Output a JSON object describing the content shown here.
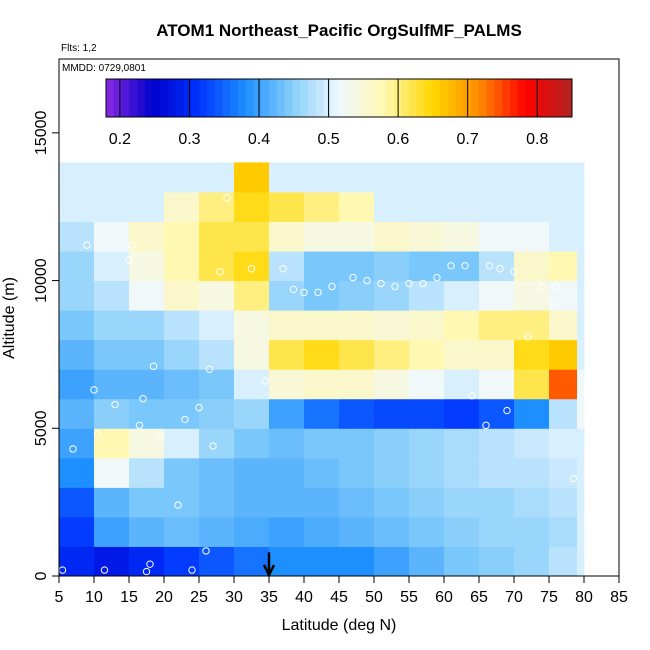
{
  "chart_data": {
    "type": "heatmap",
    "title": "ATOM1 Northeast_Pacific OrgSulfMF_PALMS",
    "flights_label": "Flts: 1,2",
    "dates_label": "MMDD: 0729,0801",
    "xlabel": "Latitude (deg N)",
    "ylabel": "Altitude (m)",
    "xlim": [
      5,
      85
    ],
    "ylim": [
      0,
      17500
    ],
    "x_ticks": [
      5,
      10,
      15,
      20,
      25,
      30,
      35,
      40,
      45,
      50,
      55,
      60,
      65,
      70,
      75,
      80,
      85
    ],
    "y_ticks": [
      0,
      5000,
      10000,
      15000
    ],
    "colorbar": {
      "range": [
        0.18,
        0.85
      ],
      "ticks": [
        "0.2",
        "0.3",
        "0.4",
        "0.5",
        "0.6",
        "0.7",
        "0.8"
      ],
      "tick_values": [
        0.2,
        0.3,
        0.4,
        0.5,
        0.6,
        0.7,
        0.8
      ],
      "colors": [
        "#8a2be2",
        "#0000cd",
        "#0033ff",
        "#1e90ff",
        "#87cefa",
        "#f0f8ff",
        "#fff8b0",
        "#ffd700",
        "#ff8c00",
        "#ff0000",
        "#b22222"
      ]
    },
    "grid": false,
    "colorbar_position": "top",
    "marker": {
      "latitude": 35,
      "label_arrow": "down"
    },
    "lat_bins": [
      5,
      10,
      15,
      20,
      25,
      30,
      35,
      40,
      45,
      50,
      55,
      60,
      65,
      70,
      75,
      79
    ],
    "alt_bins": [
      0,
      1000,
      2000,
      3000,
      4000,
      5000,
      6000,
      7000,
      8000,
      9000,
      10000,
      11000,
      12000,
      13000
    ],
    "values": [
      [
        0.3,
        0.28,
        0.3,
        0.32,
        0.34,
        0.36,
        0.38,
        0.38,
        0.38,
        0.4,
        0.42,
        0.44,
        0.45,
        0.46,
        0.48,
        0.5
      ],
      [
        0.32,
        0.4,
        0.42,
        0.43,
        0.42,
        0.41,
        0.4,
        0.41,
        0.42,
        0.43,
        0.44,
        0.45,
        0.46,
        0.46,
        0.47,
        0.5
      ],
      [
        0.34,
        0.42,
        0.44,
        0.44,
        0.43,
        0.42,
        0.42,
        0.42,
        0.43,
        0.44,
        0.45,
        0.46,
        0.46,
        0.47,
        0.48,
        0.5
      ],
      [
        0.38,
        0.52,
        0.48,
        0.44,
        0.43,
        0.42,
        0.42,
        0.43,
        0.44,
        0.45,
        0.46,
        0.47,
        0.48,
        0.48,
        0.49,
        0.5
      ],
      [
        0.4,
        0.58,
        0.54,
        0.5,
        0.46,
        0.44,
        0.43,
        0.44,
        0.44,
        0.45,
        0.46,
        0.47,
        0.48,
        0.49,
        0.5,
        0.5
      ],
      [
        0.42,
        0.45,
        0.44,
        0.44,
        0.45,
        0.46,
        0.4,
        0.36,
        0.34,
        0.33,
        0.33,
        0.32,
        0.34,
        0.38,
        0.48,
        0.52
      ],
      [
        0.4,
        0.42,
        0.42,
        0.43,
        0.44,
        0.5,
        0.55,
        0.56,
        0.56,
        0.54,
        0.52,
        0.5,
        0.52,
        0.62,
        0.74,
        0.52
      ],
      [
        0.42,
        0.44,
        0.44,
        0.46,
        0.48,
        0.54,
        0.62,
        0.64,
        0.62,
        0.6,
        0.58,
        0.56,
        0.56,
        0.64,
        0.66,
        0.5
      ],
      [
        0.44,
        0.46,
        0.46,
        0.48,
        0.5,
        0.54,
        0.56,
        0.56,
        0.56,
        0.55,
        0.56,
        0.58,
        0.6,
        0.6,
        0.56,
        0.5
      ],
      [
        0.46,
        0.48,
        0.52,
        0.56,
        0.54,
        0.6,
        0.46,
        0.44,
        0.45,
        0.46,
        0.48,
        0.5,
        0.52,
        0.54,
        0.52,
        0.5
      ],
      [
        0.46,
        0.5,
        0.54,
        0.58,
        0.62,
        0.64,
        0.48,
        0.44,
        0.44,
        0.45,
        0.44,
        0.44,
        0.48,
        0.56,
        0.58,
        0.5
      ],
      [
        0.48,
        0.52,
        0.56,
        0.58,
        0.62,
        0.62,
        0.56,
        0.54,
        0.54,
        0.56,
        0.55,
        0.54,
        0.52,
        0.52,
        0.5,
        0.5
      ],
      [
        0.5,
        0.5,
        0.5,
        0.56,
        0.6,
        0.64,
        0.62,
        0.6,
        0.58,
        0.5,
        0.5,
        0.5,
        0.5,
        0.5,
        0.5,
        0.5
      ],
      [
        0.5,
        0.5,
        0.5,
        0.5,
        0.5,
        0.66,
        0.5,
        0.5,
        0.5,
        0.5,
        0.5,
        0.5,
        0.5,
        0.5,
        0.5,
        0.5
      ]
    ],
    "samples": [
      [
        5.5,
        200
      ],
      [
        7,
        4300
      ],
      [
        9,
        11200
      ],
      [
        10,
        6300
      ],
      [
        10.5,
        4800
      ],
      [
        11.5,
        200
      ],
      [
        13,
        5800
      ],
      [
        15,
        10700
      ],
      [
        15.5,
        11200
      ],
      [
        16.5,
        5100
      ],
      [
        17,
        6000
      ],
      [
        17.5,
        150
      ],
      [
        18,
        400
      ],
      [
        18.5,
        7100
      ],
      [
        19.5,
        4700
      ],
      [
        22,
        2400
      ],
      [
        23,
        5300
      ],
      [
        24,
        200
      ],
      [
        25,
        5700
      ],
      [
        26,
        850
      ],
      [
        26.5,
        7000
      ],
      [
        27,
        4400
      ],
      [
        28,
        10300
      ],
      [
        29,
        12800
      ],
      [
        32.5,
        10400
      ],
      [
        34.5,
        6600
      ],
      [
        37,
        10400
      ],
      [
        38.5,
        9700
      ],
      [
        40,
        9600
      ],
      [
        42,
        9600
      ],
      [
        44,
        9800
      ],
      [
        47,
        10100
      ],
      [
        49,
        10000
      ],
      [
        51,
        9900
      ],
      [
        53,
        9800
      ],
      [
        55,
        9900
      ],
      [
        57,
        9900
      ],
      [
        59,
        10100
      ],
      [
        61,
        10500
      ],
      [
        63,
        10500
      ],
      [
        64,
        6100
      ],
      [
        66,
        5100
      ],
      [
        66.5,
        10500
      ],
      [
        68,
        10400
      ],
      [
        69,
        5600
      ],
      [
        70,
        10300
      ],
      [
        72,
        8100
      ],
      [
        74,
        9800
      ],
      [
        75.5,
        9200
      ],
      [
        76,
        9800
      ],
      [
        78.5,
        3300
      ]
    ]
  }
}
